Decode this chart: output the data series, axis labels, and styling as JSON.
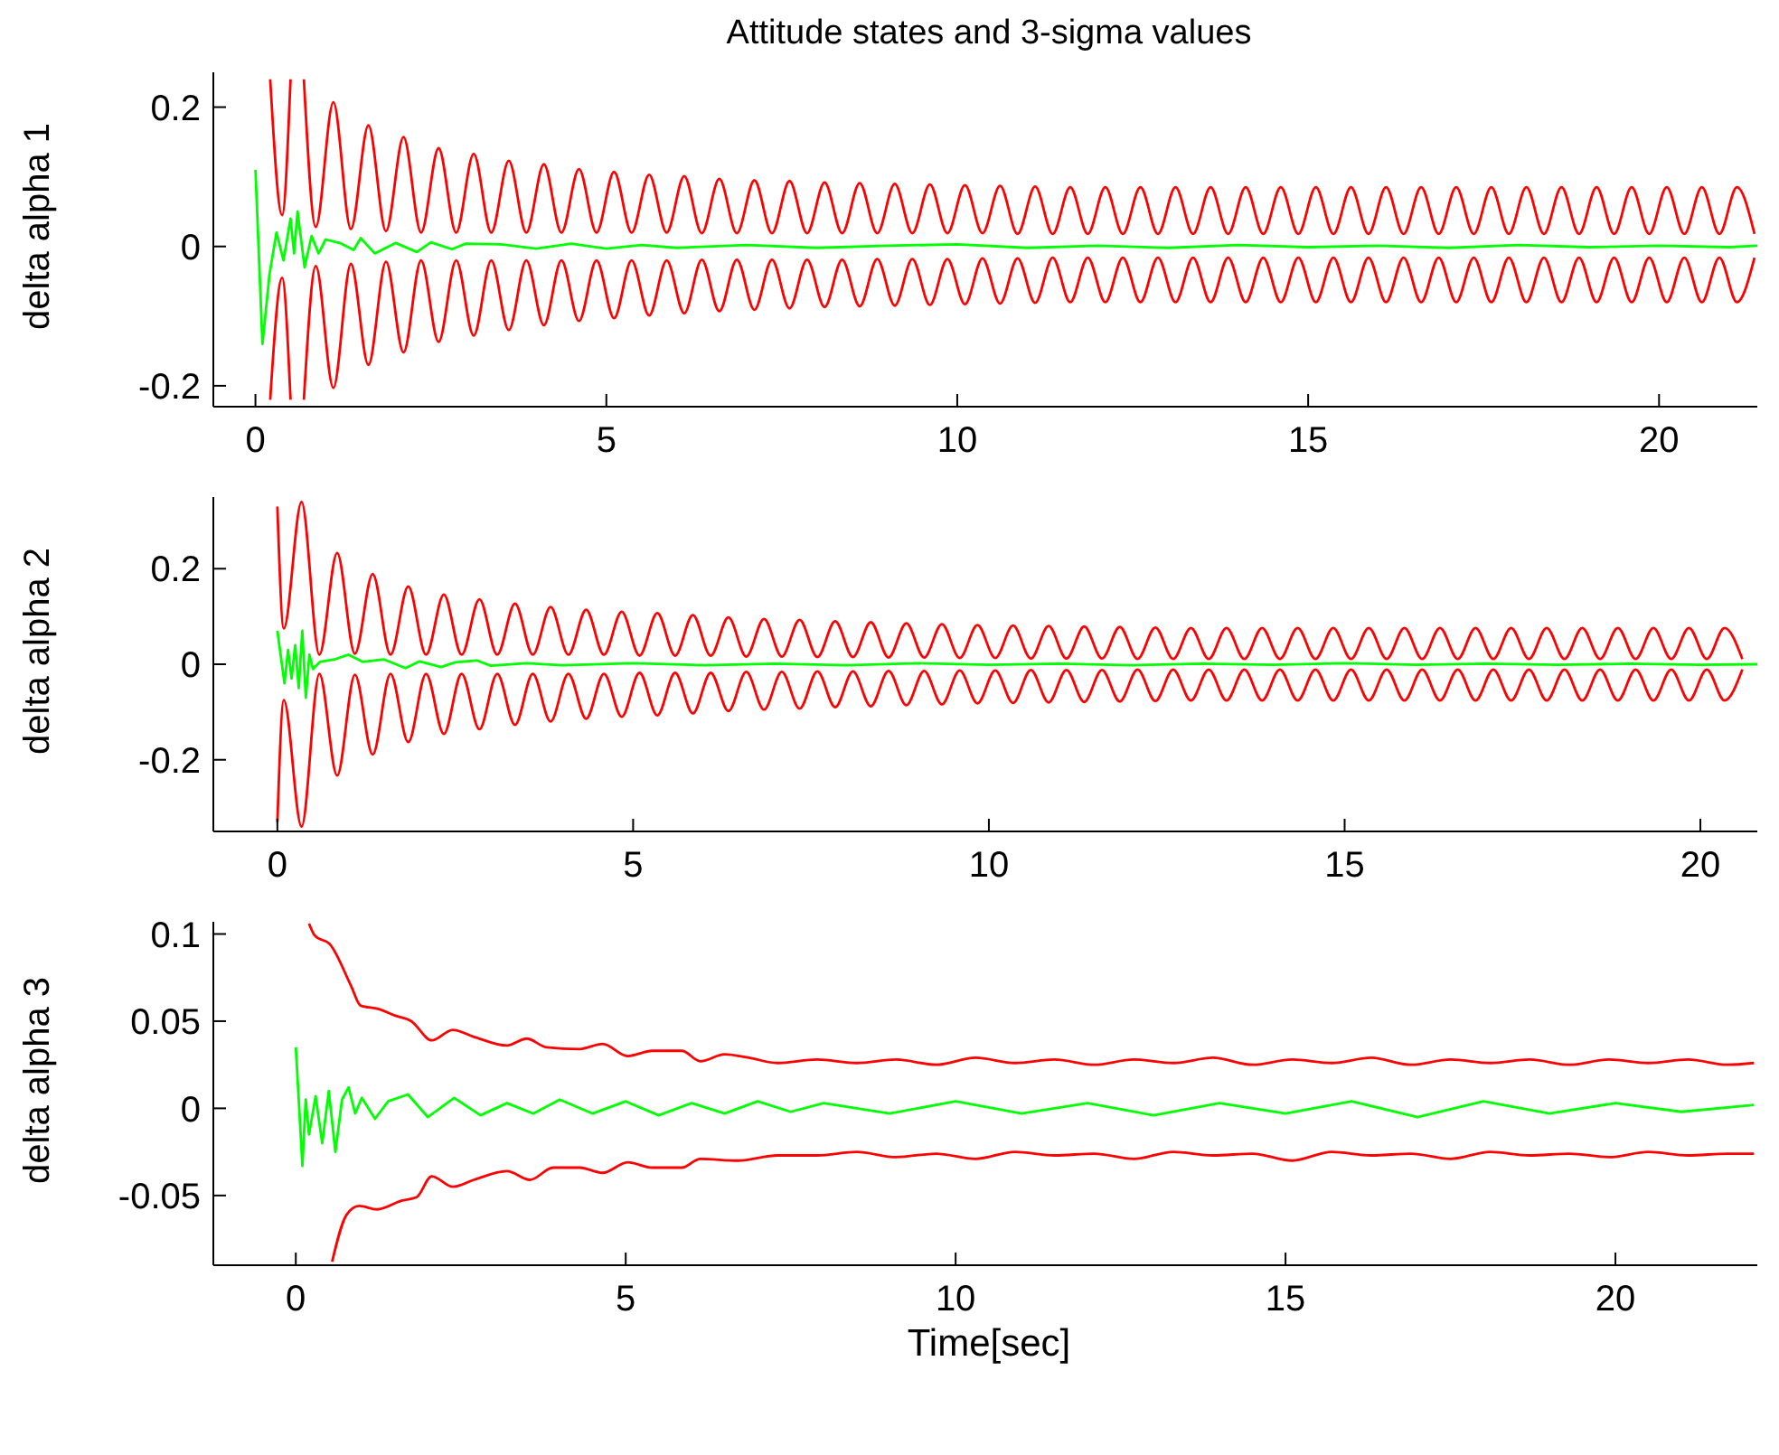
{
  "chart_data": [
    {
      "type": "line",
      "title": "Attitude states and 3-sigma values",
      "ylabel": "delta alpha 1",
      "xlim": [
        -0.6,
        21.4
      ],
      "xticks": [
        0,
        5,
        10,
        15,
        20
      ],
      "ylim": [
        -0.23,
        0.25
      ],
      "yticks": [
        -0.2,
        0,
        0.2
      ],
      "grid": false,
      "legend": false,
      "x": [
        0.21,
        0.38,
        0.5,
        0.615,
        0.69,
        0.86,
        1.11,
        1.36,
        1.61,
        1.86,
        2.11,
        2.36,
        2.61,
        2.86,
        3.11,
        3.36,
        3.61,
        3.86,
        4.11,
        4.36,
        4.61,
        4.86,
        5.11,
        5.36,
        5.61,
        5.86,
        6.11,
        6.36,
        6.61,
        6.86,
        7.11,
        7.36,
        7.61,
        7.86,
        8.11,
        8.36,
        8.61,
        8.86,
        9.11,
        9.36,
        9.61,
        9.86,
        10.11,
        10.36,
        10.61,
        10.86,
        11.11,
        11.36,
        11.61,
        11.86,
        12.11,
        12.36,
        12.61,
        12.86,
        13.11,
        13.36,
        13.61,
        13.86,
        14.11,
        14.36,
        14.61,
        14.86,
        15.11,
        15.36,
        15.61,
        15.86,
        16.11,
        16.36,
        16.61,
        16.86,
        17.11,
        17.36,
        17.61,
        17.86,
        18.11,
        18.36,
        18.61,
        18.86,
        19.11,
        19.36,
        19.61,
        19.86,
        20.11,
        20.36,
        20.61,
        20.86,
        21.11,
        21.36
      ],
      "series": [
        {
          "type": "line",
          "color": "#ff0000",
          "values": [
            0.24,
            0.045,
            0.24,
            null,
            0.24,
            0.028,
            0.207,
            0.025,
            0.174,
            0.022,
            0.157,
            0.02,
            0.141,
            0.02,
            0.133,
            0.02,
            0.123,
            0.02,
            0.118,
            0.02,
            0.111,
            0.02,
            0.107,
            0.02,
            0.103,
            0.02,
            0.101,
            0.019,
            0.097,
            0.019,
            0.095,
            0.019,
            0.094,
            0.019,
            0.092,
            0.019,
            0.091,
            0.019,
            0.09,
            0.019,
            0.089,
            0.019,
            0.088,
            0.019,
            0.087,
            0.018,
            0.086,
            0.018,
            0.085,
            0.018,
            0.085,
            0.018,
            0.085,
            0.018,
            0.085,
            0.018,
            0.085,
            0.018,
            0.085,
            0.018,
            0.085,
            0.018,
            0.085,
            0.018,
            0.085,
            0.018,
            0.085,
            0.018,
            0.085,
            0.018,
            0.085,
            0.018,
            0.085,
            0.018,
            0.085,
            0.018,
            0.085,
            0.018,
            0.085,
            0.018,
            0.085,
            0.018,
            0.085,
            0.018,
            0.085,
            0.018,
            0.085,
            0.018
          ]
        },
        {
          "type": "line",
          "color": "#ff0000",
          "values": [
            -0.22,
            -0.045,
            -0.22,
            null,
            -0.22,
            -0.028,
            -0.203,
            -0.025,
            -0.17,
            -0.022,
            -0.152,
            -0.02,
            -0.137,
            -0.02,
            -0.128,
            -0.02,
            -0.12,
            -0.02,
            -0.113,
            -0.02,
            -0.107,
            -0.02,
            -0.103,
            -0.02,
            -0.099,
            -0.02,
            -0.096,
            -0.019,
            -0.093,
            -0.019,
            -0.091,
            -0.019,
            -0.089,
            -0.019,
            -0.087,
            -0.019,
            -0.086,
            -0.018,
            -0.085,
            -0.018,
            -0.084,
            -0.018,
            -0.083,
            -0.017,
            -0.082,
            -0.017,
            -0.081,
            -0.016,
            -0.08,
            -0.016,
            -0.08,
            -0.016,
            -0.08,
            -0.016,
            -0.08,
            -0.016,
            -0.08,
            -0.016,
            -0.08,
            -0.016,
            -0.08,
            -0.016,
            -0.08,
            -0.016,
            -0.08,
            -0.016,
            -0.08,
            -0.016,
            -0.08,
            -0.016,
            -0.08,
            -0.016,
            -0.08,
            -0.016,
            -0.08,
            -0.016,
            -0.08,
            -0.016,
            -0.08,
            -0.016,
            -0.08,
            -0.016,
            -0.08,
            -0.016,
            -0.08,
            -0.016,
            -0.08,
            -0.016
          ]
        },
        {
          "type": "line",
          "color": "#00ff00",
          "x": [
            0,
            0.1,
            0.2,
            0.3,
            0.4,
            0.5,
            0.55,
            0.6,
            0.7,
            0.8,
            0.9,
            1.0,
            1.2,
            1.4,
            1.5,
            1.7,
            2.0,
            2.3,
            2.5,
            2.8,
            3.0,
            3.5,
            4.0,
            4.5,
            5.0,
            5.5,
            6.0,
            7.0,
            8.0,
            9.0,
            10.0,
            11.0,
            12.0,
            13.0,
            14.0,
            15.0,
            16.0,
            17.0,
            18.0,
            19.0,
            20.0,
            21.0,
            21.4
          ],
          "values": [
            0.11,
            -0.14,
            -0.04,
            0.02,
            -0.02,
            0.04,
            -0.01,
            0.05,
            -0.03,
            0.015,
            -0.01,
            0.01,
            0.005,
            -0.005,
            0.012,
            -0.01,
            0.005,
            -0.008,
            0.006,
            -0.004,
            0.004,
            0.003,
            -0.003,
            0.004,
            -0.003,
            0.002,
            -0.002,
            0.002,
            -0.002,
            0.001,
            0.003,
            -0.002,
            0.001,
            -0.002,
            0.002,
            -0.001,
            0.001,
            -0.002,
            0.002,
            -0.001,
            0.001,
            -0.001,
            0.001
          ]
        }
      ]
    },
    {
      "type": "line",
      "ylabel": "delta alpha 2",
      "xlim": [
        -0.9,
        20.8
      ],
      "xticks": [
        0,
        5,
        10,
        15,
        20
      ],
      "ylim": [
        -0.35,
        0.35
      ],
      "yticks": [
        -0.2,
        0,
        0.2
      ],
      "grid": false,
      "legend": false,
      "x": [
        0,
        0.09,
        0.34,
        0.59,
        0.84,
        1.09,
        1.34,
        1.59,
        1.84,
        2.09,
        2.34,
        2.59,
        2.84,
        3.09,
        3.34,
        3.59,
        3.84,
        4.09,
        4.34,
        4.59,
        4.84,
        5.09,
        5.34,
        5.59,
        5.84,
        6.09,
        6.34,
        6.59,
        6.84,
        7.09,
        7.34,
        7.59,
        7.84,
        8.09,
        8.34,
        8.59,
        8.84,
        9.09,
        9.34,
        9.59,
        9.84,
        10.09,
        10.34,
        10.59,
        10.84,
        11.09,
        11.34,
        11.59,
        11.84,
        12.09,
        12.34,
        12.59,
        12.84,
        13.09,
        13.34,
        13.59,
        13.84,
        14.09,
        14.34,
        14.59,
        14.84,
        15.09,
        15.34,
        15.59,
        15.84,
        16.09,
        16.34,
        16.59,
        16.84,
        17.09,
        17.34,
        17.59,
        17.84,
        18.09,
        18.34,
        18.59,
        18.84,
        19.09,
        19.34,
        19.59,
        19.84,
        20.09,
        20.34,
        20.59
      ],
      "series": [
        {
          "type": "line",
          "color": "#ff0000",
          "values": [
            0.33,
            0.075,
            0.34,
            0.02,
            0.233,
            0.022,
            0.189,
            0.02,
            0.163,
            0.02,
            0.146,
            0.02,
            0.136,
            0.02,
            0.127,
            0.02,
            0.12,
            0.02,
            0.114,
            0.02,
            0.11,
            0.018,
            0.107,
            0.018,
            0.103,
            0.018,
            0.098,
            0.016,
            0.095,
            0.016,
            0.093,
            0.015,
            0.09,
            0.015,
            0.088,
            0.014,
            0.086,
            0.014,
            0.084,
            0.013,
            0.082,
            0.013,
            0.081,
            0.012,
            0.08,
            0.012,
            0.079,
            0.012,
            0.078,
            0.011,
            0.077,
            0.011,
            0.076,
            0.011,
            0.076,
            0.011,
            0.076,
            0.011,
            0.076,
            0.011,
            0.076,
            0.011,
            0.076,
            0.011,
            0.076,
            0.011,
            0.076,
            0.011,
            0.076,
            0.011,
            0.076,
            0.011,
            0.076,
            0.011,
            0.076,
            0.011,
            0.076,
            0.011,
            0.076,
            0.011,
            0.076,
            0.011,
            0.076,
            0.011
          ]
        },
        {
          "type": "line",
          "color": "#ff0000",
          "values": [
            -0.33,
            -0.075,
            -0.34,
            -0.02,
            -0.233,
            -0.022,
            -0.189,
            -0.02,
            -0.163,
            -0.02,
            -0.146,
            -0.02,
            -0.136,
            -0.02,
            -0.127,
            -0.02,
            -0.12,
            -0.02,
            -0.114,
            -0.02,
            -0.11,
            -0.018,
            -0.107,
            -0.018,
            -0.103,
            -0.018,
            -0.098,
            -0.016,
            -0.095,
            -0.016,
            -0.093,
            -0.015,
            -0.09,
            -0.015,
            -0.088,
            -0.014,
            -0.086,
            -0.014,
            -0.084,
            -0.013,
            -0.082,
            -0.013,
            -0.081,
            -0.012,
            -0.08,
            -0.012,
            -0.079,
            -0.012,
            -0.078,
            -0.011,
            -0.077,
            -0.011,
            -0.076,
            -0.011,
            -0.076,
            -0.011,
            -0.076,
            -0.011,
            -0.076,
            -0.011,
            -0.076,
            -0.011,
            -0.076,
            -0.011,
            -0.076,
            -0.011,
            -0.076,
            -0.011,
            -0.076,
            -0.011,
            -0.076,
            -0.011,
            -0.076,
            -0.011,
            -0.076,
            -0.011,
            -0.076,
            -0.011,
            -0.076,
            -0.011,
            -0.076,
            -0.011,
            -0.076,
            -0.011
          ]
        },
        {
          "type": "line",
          "color": "#00ff00",
          "x": [
            0,
            0.1,
            0.15,
            0.2,
            0.25,
            0.3,
            0.35,
            0.4,
            0.45,
            0.5,
            0.6,
            0.8,
            1.0,
            1.2,
            1.5,
            1.8,
            2.0,
            2.3,
            2.5,
            2.8,
            3.0,
            3.5,
            4.0,
            5,
            6,
            7,
            8,
            9,
            10,
            11,
            12,
            13,
            14,
            15,
            16,
            17,
            18,
            19,
            20,
            20.8
          ],
          "values": [
            0.07,
            -0.04,
            0.03,
            -0.03,
            0.04,
            -0.05,
            0.07,
            -0.07,
            0.02,
            -0.01,
            0.005,
            0.01,
            0.02,
            0.005,
            0.01,
            -0.008,
            0.006,
            -0.006,
            0.004,
            0.008,
            -0.003,
            0.002,
            -0.002,
            0.002,
            -0.002,
            0.001,
            -0.002,
            0.002,
            -0.001,
            0.001,
            -0.002,
            0.001,
            -0.001,
            0.002,
            -0.001,
            0.001,
            -0.001,
            0.001,
            -0.001,
            0
          ]
        }
      ]
    },
    {
      "type": "line",
      "ylabel": "delta alpha 3",
      "xlabel": "Time[sec]",
      "xlim": [
        -1.25,
        22.15
      ],
      "xticks": [
        0,
        5,
        10,
        15,
        20
      ],
      "ylim": [
        -0.09,
        0.107
      ],
      "yticks": [
        -0.05,
        0,
        0.05,
        0.1
      ],
      "grid": false,
      "legend": false,
      "series": [
        {
          "type": "line",
          "color": "#ff0000",
          "x": [
            0.2,
            0.29,
            0.52,
            0.84,
            0.98,
            1.25,
            1.52,
            1.75,
            2.06,
            2.38,
            2.7,
            3.2,
            3.5,
            3.8,
            4.3,
            4.65,
            5.03,
            5.4,
            5.85,
            6.13,
            6.5,
            6.87,
            7.3,
            7.9,
            8.5,
            9.1,
            9.7,
            10.3,
            10.9,
            11.5,
            12.1,
            12.7,
            13.3,
            13.9,
            14.5,
            15.1,
            15.7,
            16.3,
            16.9,
            17.5,
            18.1,
            18.7,
            19.3,
            19.9,
            20.5,
            21.1,
            21.7,
            22.1
          ],
          "values": [
            0.106,
            0.099,
            0.094,
            0.07,
            0.059,
            0.057,
            0.053,
            0.05,
            0.039,
            0.045,
            0.041,
            0.036,
            0.04,
            0.035,
            0.034,
            0.037,
            0.03,
            0.033,
            0.033,
            0.027,
            0.031,
            0.029,
            0.026,
            0.028,
            0.026,
            0.028,
            0.025,
            0.029,
            0.026,
            0.028,
            0.025,
            0.028,
            0.026,
            0.029,
            0.025,
            0.028,
            0.026,
            0.029,
            0.025,
            0.028,
            0.026,
            0.028,
            0.025,
            0.028,
            0.026,
            0.028,
            0.025,
            0.026
          ]
        },
        {
          "type": "line",
          "color": "#ff0000",
          "x": [
            0.55,
            0.77,
            0.96,
            1.23,
            1.6,
            1.83,
            2.06,
            2.38,
            2.7,
            3.2,
            3.55,
            3.9,
            4.3,
            4.65,
            5.03,
            5.4,
            5.85,
            6.13,
            6.7,
            7.3,
            7.9,
            8.5,
            9.1,
            9.7,
            10.3,
            10.9,
            11.5,
            12.1,
            12.7,
            13.3,
            13.9,
            14.5,
            15.1,
            15.7,
            16.3,
            16.9,
            17.5,
            18.1,
            18.7,
            19.3,
            19.9,
            20.5,
            21.1,
            21.7,
            22.1
          ],
          "values": [
            -0.088,
            -0.061,
            -0.056,
            -0.058,
            -0.053,
            -0.051,
            -0.039,
            -0.045,
            -0.041,
            -0.036,
            -0.041,
            -0.034,
            -0.034,
            -0.037,
            -0.031,
            -0.034,
            -0.034,
            -0.029,
            -0.03,
            -0.027,
            -0.027,
            -0.025,
            -0.028,
            -0.026,
            -0.029,
            -0.025,
            -0.027,
            -0.026,
            -0.029,
            -0.025,
            -0.027,
            -0.026,
            -0.03,
            -0.025,
            -0.027,
            -0.026,
            -0.029,
            -0.025,
            -0.027,
            -0.026,
            -0.028,
            -0.025,
            -0.027,
            -0.026,
            -0.026
          ]
        },
        {
          "type": "line",
          "color": "#00ff00",
          "x": [
            0,
            0.1,
            0.15,
            0.2,
            0.3,
            0.4,
            0.5,
            0.6,
            0.7,
            0.8,
            0.9,
            1.0,
            1.2,
            1.4,
            1.7,
            2.0,
            2.4,
            2.8,
            3.2,
            3.6,
            4.0,
            4.5,
            5,
            5.5,
            6,
            6.5,
            7,
            7.5,
            8,
            9,
            10,
            11,
            12,
            13,
            14,
            15,
            16,
            17,
            18,
            19,
            20,
            21,
            22.1
          ],
          "values": [
            0.035,
            -0.033,
            0.005,
            -0.015,
            0.007,
            -0.02,
            0.01,
            -0.025,
            0.005,
            0.012,
            -0.003,
            0.006,
            -0.006,
            0.004,
            0.008,
            -0.005,
            0.006,
            -0.004,
            0.003,
            -0.003,
            0.005,
            -0.003,
            0.004,
            -0.004,
            0.003,
            -0.003,
            0.004,
            -0.002,
            0.003,
            -0.003,
            0.004,
            -0.003,
            0.003,
            -0.004,
            0.003,
            -0.003,
            0.004,
            -0.005,
            0.004,
            -0.003,
            0.003,
            -0.002,
            0.002
          ]
        }
      ]
    }
  ]
}
